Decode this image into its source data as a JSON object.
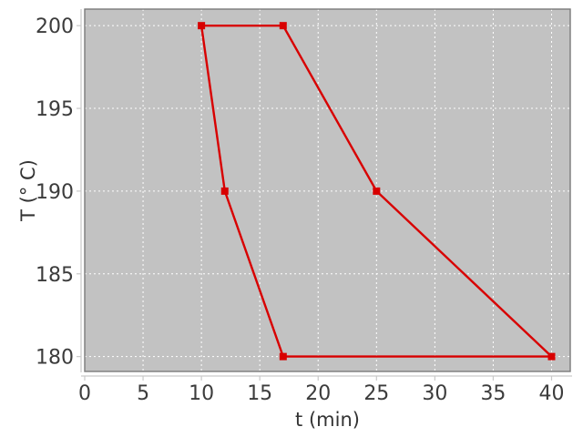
{
  "chart_data": {
    "type": "line",
    "title": "",
    "xlabel": "t (min)",
    "ylabel": "T (° C)",
    "xlim": [
      0,
      41.6
    ],
    "ylim": [
      179.1,
      201.0
    ],
    "xticks": [
      0,
      5,
      10,
      15,
      20,
      25,
      30,
      35,
      40
    ],
    "yticks": [
      180,
      185,
      190,
      195,
      200
    ],
    "grid": true,
    "grid_style": "dotted-white",
    "legend": false,
    "series": [
      {
        "name": "temperature-profile",
        "color": "#d80000",
        "marker": "square",
        "marker_size": 8,
        "closed": true,
        "points": [
          [
            10,
            200
          ],
          [
            17,
            200
          ],
          [
            25,
            190
          ],
          [
            40,
            180
          ],
          [
            17,
            180
          ],
          [
            12,
            190
          ]
        ]
      }
    ]
  },
  "colors": {
    "outer_background": "#ffffff",
    "plot_background": "#c2c2c2",
    "plot_border": "#7a7a7a",
    "grid": "#ffffff",
    "axis_line": "#c9c9c9",
    "tick_label": "#3c3c3c",
    "axis_label": "#333333",
    "series": "#d80000"
  }
}
